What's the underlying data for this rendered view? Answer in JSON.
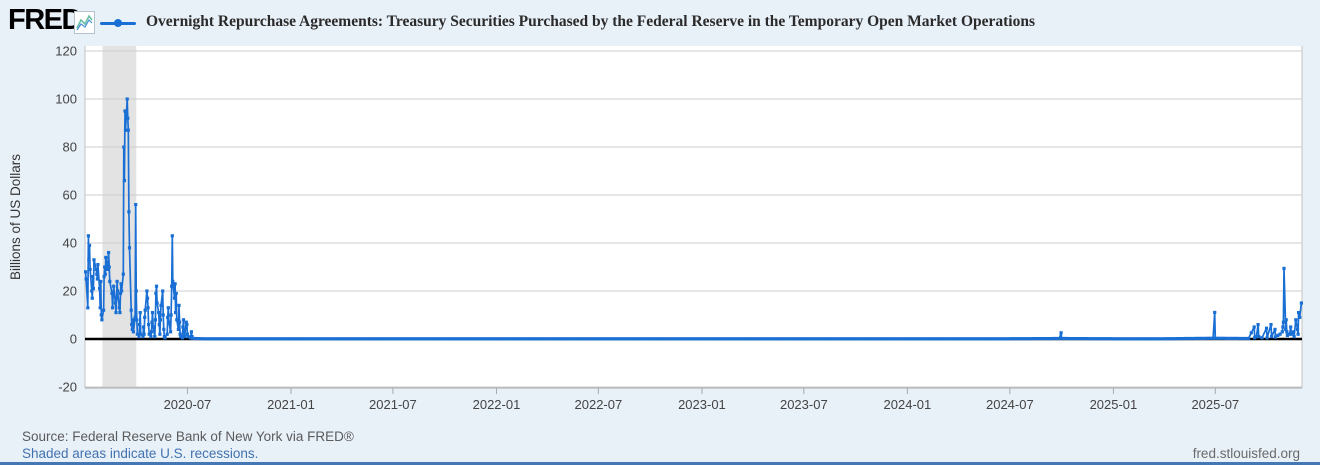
{
  "header": {
    "logo_text": "FRED",
    "title": "Overnight Repurchase Agreements: Treasury Securities Purchased by the Federal Reserve in the Temporary Open Market Operations"
  },
  "footer": {
    "source": "Source: Federal Reserve Bank of New York via FRED®",
    "recession_note": "Shaded areas indicate U.S. recessions.",
    "site": "fred.stlouisfed.org"
  },
  "colors": {
    "background": "#e8f0f8",
    "plot_background": "#ffffff",
    "gridline": "#cccccc",
    "axis_text": "#444444",
    "zero_line": "#000000",
    "bottom_bar": "#4577b5",
    "link_blue": "#4272b0"
  },
  "chart_data": {
    "type": "line",
    "title": "Overnight Repurchase Agreements: Treasury Securities Purchased by the Federal Reserve in the Temporary Open Market Operations",
    "xlabel": "",
    "ylabel": "Billions of US Dollars",
    "ylim": [
      -20,
      120
    ],
    "y_ticks": [
      -20,
      0,
      20,
      40,
      60,
      80,
      100,
      120
    ],
    "x_ticks": [
      "2020-07",
      "2021-01",
      "2021-07",
      "2022-01",
      "2022-07",
      "2023-01",
      "2023-07",
      "2024-01",
      "2024-07",
      "2025-01",
      "2025-07"
    ],
    "x_domain": [
      "2020-01-01",
      "2025-12-02"
    ],
    "grid": "horizontal",
    "legend_position": "top",
    "series_color": "#1a6fd4",
    "recession_color": "#e3e3e3",
    "recession_bands": [
      [
        "2020-02-01",
        "2020-04-01"
      ]
    ],
    "zero_line": true,
    "points": [
      [
        "2020-01-02",
        28
      ],
      [
        "2020-01-03",
        25
      ],
      [
        "2020-01-06",
        13
      ],
      [
        "2020-01-07",
        43
      ],
      [
        "2020-01-08",
        33
      ],
      [
        "2020-01-09",
        39
      ],
      [
        "2020-01-10",
        29
      ],
      [
        "2020-01-13",
        20
      ],
      [
        "2020-01-14",
        17
      ],
      [
        "2020-01-15",
        26
      ],
      [
        "2020-01-16",
        21
      ],
      [
        "2020-01-17",
        33
      ],
      [
        "2020-01-21",
        29
      ],
      [
        "2020-01-22",
        27
      ],
      [
        "2020-01-23",
        25
      ],
      [
        "2020-01-24",
        31
      ],
      [
        "2020-01-27",
        21
      ],
      [
        "2020-01-28",
        13
      ],
      [
        "2020-01-29",
        24
      ],
      [
        "2020-01-30",
        10
      ],
      [
        "2020-01-31",
        8
      ],
      [
        "2020-02-03",
        12
      ],
      [
        "2020-02-04",
        26
      ],
      [
        "2020-02-05",
        30
      ],
      [
        "2020-02-06",
        27
      ],
      [
        "2020-02-07",
        34
      ],
      [
        "2020-02-10",
        29
      ],
      [
        "2020-02-11",
        32
      ],
      [
        "2020-02-12",
        36
      ],
      [
        "2020-02-13",
        30
      ],
      [
        "2020-02-14",
        24
      ],
      [
        "2020-02-18",
        19
      ],
      [
        "2020-02-19",
        13
      ],
      [
        "2020-02-20",
        18
      ],
      [
        "2020-02-21",
        22
      ],
      [
        "2020-02-24",
        15
      ],
      [
        "2020-02-25",
        11
      ],
      [
        "2020-02-26",
        17
      ],
      [
        "2020-02-27",
        24
      ],
      [
        "2020-02-28",
        20
      ],
      [
        "2020-03-02",
        13
      ],
      [
        "2020-03-03",
        11
      ],
      [
        "2020-03-04",
        19
      ],
      [
        "2020-03-05",
        23
      ],
      [
        "2020-03-06",
        20
      ],
      [
        "2020-03-09",
        27
      ],
      [
        "2020-03-10",
        80
      ],
      [
        "2020-03-11",
        66
      ],
      [
        "2020-03-12",
        95
      ],
      [
        "2020-03-13",
        87
      ],
      [
        "2020-03-16",
        100
      ],
      [
        "2020-03-17",
        92
      ],
      [
        "2020-03-18",
        87
      ],
      [
        "2020-03-19",
        53
      ],
      [
        "2020-03-20",
        38
      ],
      [
        "2020-03-23",
        12
      ],
      [
        "2020-03-24",
        6
      ],
      [
        "2020-03-25",
        4
      ],
      [
        "2020-03-26",
        8
      ],
      [
        "2020-03-27",
        3
      ],
      [
        "2020-03-30",
        9
      ],
      [
        "2020-03-31",
        56
      ],
      [
        "2020-04-01",
        20
      ],
      [
        "2020-04-02",
        8
      ],
      [
        "2020-04-03",
        2
      ],
      [
        "2020-04-06",
        1
      ],
      [
        "2020-04-07",
        6
      ],
      [
        "2020-04-08",
        11
      ],
      [
        "2020-04-09",
        2
      ],
      [
        "2020-04-13",
        1
      ],
      [
        "2020-04-14",
        5
      ],
      [
        "2020-04-15",
        2
      ],
      [
        "2020-04-16",
        9
      ],
      [
        "2020-04-17",
        12
      ],
      [
        "2020-04-20",
        20
      ],
      [
        "2020-04-21",
        17
      ],
      [
        "2020-04-22",
        13
      ],
      [
        "2020-04-23",
        6
      ],
      [
        "2020-04-24",
        2
      ],
      [
        "2020-04-27",
        1
      ],
      [
        "2020-04-28",
        3
      ],
      [
        "2020-04-29",
        7
      ],
      [
        "2020-04-30",
        11
      ],
      [
        "2020-05-01",
        5
      ],
      [
        "2020-05-04",
        1
      ],
      [
        "2020-05-05",
        8
      ],
      [
        "2020-05-06",
        19
      ],
      [
        "2020-05-07",
        22
      ],
      [
        "2020-05-08",
        15
      ],
      [
        "2020-05-11",
        11
      ],
      [
        "2020-05-12",
        6
      ],
      [
        "2020-05-13",
        2
      ],
      [
        "2020-05-14",
        8
      ],
      [
        "2020-05-15",
        14
      ],
      [
        "2020-05-18",
        20
      ],
      [
        "2020-05-19",
        10
      ],
      [
        "2020-05-20",
        4
      ],
      [
        "2020-05-21",
        1
      ],
      [
        "2020-05-22",
        0.5
      ],
      [
        "2020-05-26",
        2
      ],
      [
        "2020-05-27",
        9
      ],
      [
        "2020-05-28",
        13
      ],
      [
        "2020-05-29",
        7
      ],
      [
        "2020-06-01",
        3
      ],
      [
        "2020-06-02",
        10
      ],
      [
        "2020-06-03",
        22
      ],
      [
        "2020-06-04",
        43
      ],
      [
        "2020-06-05",
        24
      ],
      [
        "2020-06-08",
        17
      ],
      [
        "2020-06-09",
        23
      ],
      [
        "2020-06-10",
        11
      ],
      [
        "2020-06-11",
        19
      ],
      [
        "2020-06-12",
        8
      ],
      [
        "2020-06-15",
        4
      ],
      [
        "2020-06-16",
        14
      ],
      [
        "2020-06-17",
        7
      ],
      [
        "2020-06-18",
        2
      ],
      [
        "2020-06-19",
        1
      ],
      [
        "2020-06-22",
        0.5
      ],
      [
        "2020-06-23",
        5
      ],
      [
        "2020-06-24",
        8
      ],
      [
        "2020-06-25",
        3
      ],
      [
        "2020-06-26",
        1
      ],
      [
        "2020-06-29",
        7
      ],
      [
        "2020-06-30",
        6
      ],
      [
        "2020-07-01",
        2
      ],
      [
        "2020-07-02",
        1
      ],
      [
        "2020-07-06",
        0.5
      ],
      [
        "2020-07-08",
        3
      ],
      [
        "2020-07-09",
        1
      ],
      [
        "2020-07-10",
        0.3
      ],
      [
        "2020-07-15",
        0.2
      ],
      [
        "2020-07-31",
        0.1
      ],
      [
        "2020-09-30",
        0.1
      ],
      [
        "2020-12-31",
        0.1
      ],
      [
        "2021-03-31",
        0.1
      ],
      [
        "2021-06-30",
        0.1
      ],
      [
        "2021-09-30",
        0.1
      ],
      [
        "2021-12-31",
        0.1
      ],
      [
        "2022-03-31",
        0.1
      ],
      [
        "2022-06-30",
        0.1
      ],
      [
        "2022-09-30",
        0.1
      ],
      [
        "2022-12-30",
        0.1
      ],
      [
        "2023-03-31",
        0.1
      ],
      [
        "2023-06-30",
        0.1
      ],
      [
        "2023-09-29",
        0.1
      ],
      [
        "2023-12-29",
        0.1
      ],
      [
        "2024-03-28",
        0.1
      ],
      [
        "2024-06-28",
        0.1
      ],
      [
        "2024-09-27",
        0.2
      ],
      [
        "2024-09-30",
        2.6
      ],
      [
        "2024-10-01",
        0.2
      ],
      [
        "2024-12-31",
        0.1
      ],
      [
        "2025-03-31",
        0.1
      ],
      [
        "2025-06-27",
        0.3
      ],
      [
        "2025-06-30",
        11.1
      ],
      [
        "2025-07-01",
        0.3
      ],
      [
        "2025-08-29",
        0.2
      ],
      [
        "2025-09-08",
        5
      ],
      [
        "2025-09-09",
        0.5
      ],
      [
        "2025-09-12",
        1
      ],
      [
        "2025-09-15",
        6
      ],
      [
        "2025-09-16",
        1
      ],
      [
        "2025-09-22",
        0.5
      ],
      [
        "2025-09-30",
        4.5
      ],
      [
        "2025-10-01",
        0.5
      ],
      [
        "2025-10-08",
        6
      ],
      [
        "2025-10-09",
        1
      ],
      [
        "2025-10-15",
        4
      ],
      [
        "2025-10-16",
        0.8
      ],
      [
        "2025-10-20",
        1.5
      ],
      [
        "2025-10-24",
        2
      ],
      [
        "2025-10-28",
        3
      ],
      [
        "2025-10-29",
        5
      ],
      [
        "2025-10-30",
        7
      ],
      [
        "2025-10-31",
        29.4
      ],
      [
        "2025-11-03",
        4
      ],
      [
        "2025-11-04",
        8
      ],
      [
        "2025-11-05",
        3
      ],
      [
        "2025-11-06",
        1.5
      ],
      [
        "2025-11-10",
        2
      ],
      [
        "2025-11-12",
        5
      ],
      [
        "2025-11-13",
        2
      ],
      [
        "2025-11-17",
        3
      ],
      [
        "2025-11-18",
        1
      ],
      [
        "2025-11-21",
        8
      ],
      [
        "2025-11-24",
        4
      ],
      [
        "2025-11-25",
        2
      ],
      [
        "2025-11-26",
        11
      ],
      [
        "2025-11-28",
        9
      ],
      [
        "2025-12-01",
        15
      ]
    ]
  }
}
